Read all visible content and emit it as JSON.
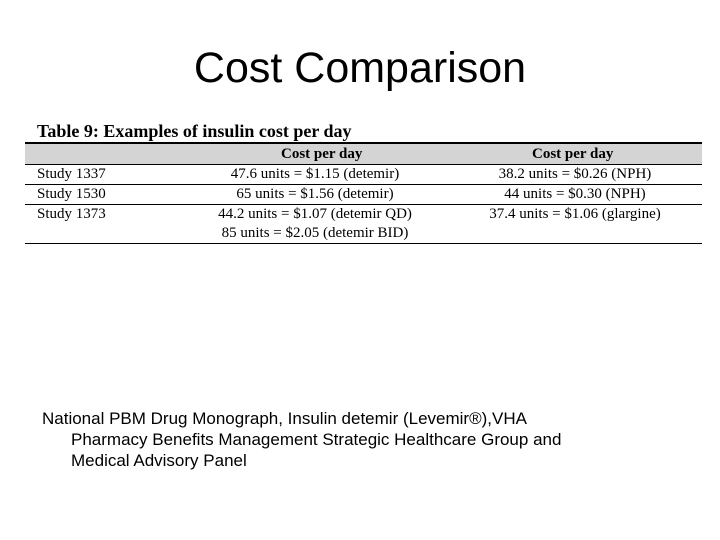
{
  "slide": {
    "title": "Cost Comparison"
  },
  "table": {
    "caption": "Table 9:  Examples of insulin cost per day",
    "headers": [
      "",
      "Cost per day",
      "Cost per day"
    ],
    "rows": [
      [
        "Study 1337",
        "47.6 units =  $1.15 (detemir)",
        "38.2 units = $0.26 (NPH)"
      ],
      [
        "Study 1530",
        "65 units = $1.56 (detemir)",
        "44 units = $0.30 (NPH)"
      ],
      [
        "Study 1373",
        "44.2 units = $1.07 (detemir QD)",
        "37.4 units = $1.06 (glargine)"
      ]
    ],
    "row3_extra": "85 units = $2.05 (detemir BID)"
  },
  "citation": {
    "line1": "National PBM Drug Monograph, Insulin detemir (Levemir®),VHA",
    "line2": "Pharmacy Benefits Management Strategic Healthcare Group and",
    "line3": "Medical Advisory Panel"
  }
}
